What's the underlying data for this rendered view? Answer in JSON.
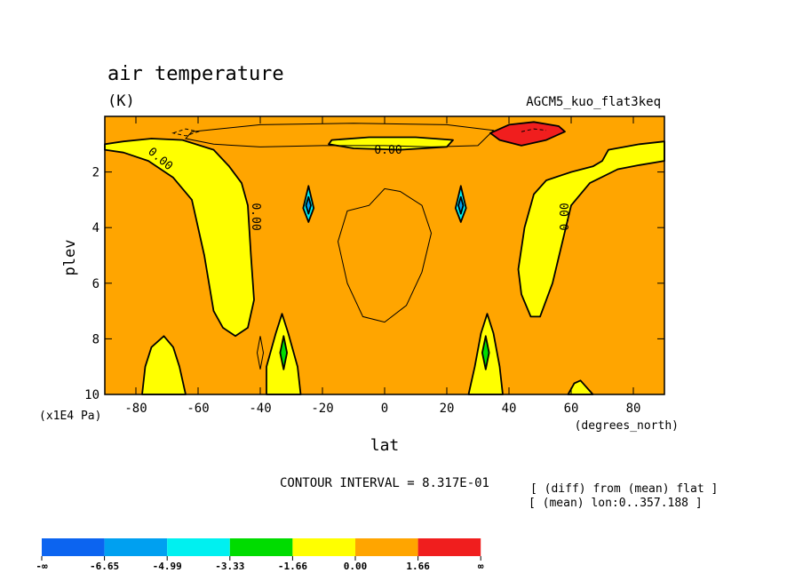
{
  "chart_data": {
    "type": "contour",
    "title": "air temperature",
    "units": "(K)",
    "experiment": "AGCM5_kuo_flat3keq",
    "xlabel": "lat",
    "xunits": "(degrees_north)",
    "ylabel": "plev",
    "yunits": "(x1E4 Pa)",
    "xlim": [
      -90,
      90
    ],
    "ylim": [
      0,
      10
    ],
    "x_ticks": [
      -80,
      -60,
      -40,
      -20,
      0,
      20,
      40,
      60,
      80
    ],
    "y_ticks": [
      2,
      4,
      6,
      8,
      10
    ],
    "x_tick_labels": [
      "-80",
      "-60",
      "-40",
      "-20",
      "0",
      "20",
      "40",
      "60",
      "80"
    ],
    "y_tick_labels": [
      "2",
      "4",
      "6",
      "8",
      "10"
    ],
    "contour_interval": "CONTOUR INTERVAL = 8.317E-01",
    "contour_label": "0.00",
    "notes": [
      "[ (diff) from (mean) flat ]",
      "[ (mean) lon:0..357.188 ]"
    ],
    "levels": [
      "-∞",
      "-6.65",
      "-4.99",
      "-3.33",
      "-1.66",
      "0.00",
      "1.66",
      "∞"
    ],
    "colors": [
      "#0c64f0",
      "#00a0f0",
      "#00f0f0",
      "#00dc00",
      "#ffff00",
      "#ffa500",
      "#f01e1e"
    ],
    "regions": [
      {
        "name": "yellow-left-band",
        "fill": "#ffff00",
        "pts": [
          [
            -90,
            1.0
          ],
          [
            -84,
            0.9
          ],
          [
            -75,
            0.8
          ],
          [
            -65,
            0.85
          ],
          [
            -55,
            1.2
          ],
          [
            -50,
            1.8
          ],
          [
            -46,
            2.4
          ],
          [
            -44,
            3.2
          ],
          [
            -43,
            5.0
          ],
          [
            -42,
            6.6
          ],
          [
            -44,
            7.6
          ],
          [
            -48,
            7.9
          ],
          [
            -52,
            7.6
          ],
          [
            -55,
            7.0
          ],
          [
            -58,
            5.0
          ],
          [
            -62,
            3.0
          ],
          [
            -68,
            2.2
          ],
          [
            -76,
            1.6
          ],
          [
            -84,
            1.3
          ],
          [
            -90,
            1.2
          ]
        ]
      },
      {
        "name": "yellow-top-center",
        "fill": "#ffff00",
        "pts": [
          [
            -17,
            0.85
          ],
          [
            -5,
            0.75
          ],
          [
            10,
            0.75
          ],
          [
            22,
            0.85
          ],
          [
            20,
            1.1
          ],
          [
            5,
            1.2
          ],
          [
            -10,
            1.15
          ],
          [
            -18,
            1.0
          ]
        ]
      },
      {
        "name": "yellow-right-band",
        "fill": "#ffff00",
        "pts": [
          [
            72,
            1.2
          ],
          [
            82,
            1.0
          ],
          [
            90,
            0.9
          ],
          [
            90,
            1.6
          ],
          [
            82,
            1.75
          ],
          [
            75,
            1.9
          ],
          [
            66,
            2.4
          ],
          [
            60,
            3.2
          ],
          [
            57,
            4.6
          ],
          [
            54,
            6.0
          ],
          [
            50,
            7.2
          ],
          [
            47,
            7.2
          ],
          [
            44,
            6.4
          ],
          [
            43,
            5.5
          ],
          [
            45,
            4.0
          ],
          [
            48,
            2.8
          ],
          [
            52,
            2.3
          ],
          [
            60,
            2.0
          ],
          [
            67,
            1.8
          ],
          [
            70,
            1.6
          ]
        ]
      },
      {
        "name": "yellow-bottom-left",
        "fill": "#ffff00",
        "pts": [
          [
            -78,
            10
          ],
          [
            -77,
            9.0
          ],
          [
            -75,
            8.3
          ],
          [
            -71,
            7.9
          ],
          [
            -68,
            8.3
          ],
          [
            -66,
            9.0
          ],
          [
            -64,
            10
          ]
        ]
      },
      {
        "name": "yellow-bottom-mid-left",
        "fill": "#ffff00",
        "pts": [
          [
            -38,
            10
          ],
          [
            -38,
            9.0
          ],
          [
            -35,
            7.8
          ],
          [
            -33,
            7.1
          ],
          [
            -31,
            7.8
          ],
          [
            -28,
            9.0
          ],
          [
            -27,
            10
          ]
        ]
      },
      {
        "name": "yellow-bottom-mid-right",
        "fill": "#ffff00",
        "pts": [
          [
            27,
            10
          ],
          [
            29,
            9.0
          ],
          [
            31,
            7.8
          ],
          [
            33,
            7.1
          ],
          [
            35,
            7.8
          ],
          [
            37,
            9.0
          ],
          [
            38,
            10
          ]
        ]
      },
      {
        "name": "yellow-bottom-right",
        "fill": "#ffff00",
        "pts": [
          [
            59,
            10
          ],
          [
            61,
            9.6
          ],
          [
            63,
            9.5
          ],
          [
            67,
            10
          ]
        ]
      },
      {
        "name": "red-top-right",
        "fill": "#f01e1e",
        "pts": [
          [
            34,
            0.6
          ],
          [
            40,
            0.3
          ],
          [
            48,
            0.2
          ],
          [
            56,
            0.35
          ],
          [
            58,
            0.55
          ],
          [
            52,
            0.85
          ],
          [
            44,
            1.05
          ],
          [
            37,
            0.85
          ]
        ]
      },
      {
        "name": "cyan-left-diamond",
        "fill": "#00f0f0",
        "pts": [
          [
            -24.5,
            2.5
          ],
          [
            -22.8,
            3.3
          ],
          [
            -24.5,
            3.8
          ],
          [
            -26.2,
            3.3
          ]
        ]
      },
      {
        "name": "blue-left-diamond",
        "fill": "#00a0f0",
        "pts": [
          [
            -24.5,
            2.9
          ],
          [
            -23.7,
            3.2
          ],
          [
            -24.5,
            3.5
          ],
          [
            -25.3,
            3.2
          ]
        ]
      },
      {
        "name": "cyan-right-diamond",
        "fill": "#00f0f0",
        "pts": [
          [
            24.5,
            2.5
          ],
          [
            26.2,
            3.3
          ],
          [
            24.5,
            3.8
          ],
          [
            22.8,
            3.3
          ]
        ]
      },
      {
        "name": "blue-right-diamond",
        "fill": "#00a0f0",
        "pts": [
          [
            24.5,
            2.9
          ],
          [
            25.3,
            3.2
          ],
          [
            24.5,
            3.5
          ],
          [
            23.7,
            3.2
          ]
        ]
      },
      {
        "name": "green-left-spot",
        "fill": "#00dc00",
        "pts": [
          [
            -32.5,
            7.9
          ],
          [
            -31.4,
            8.5
          ],
          [
            -32.5,
            9.1
          ],
          [
            -33.6,
            8.5
          ]
        ]
      },
      {
        "name": "green-right-spot",
        "fill": "#00dc00",
        "pts": [
          [
            32.5,
            7.9
          ],
          [
            33.6,
            8.5
          ],
          [
            32.5,
            9.1
          ],
          [
            31.4,
            8.5
          ]
        ]
      }
    ],
    "lines": [
      {
        "name": "contour-center-loop",
        "dash": false,
        "closed": true,
        "pts": [
          [
            -5,
            3.2
          ],
          [
            0,
            2.6
          ],
          [
            5,
            2.7
          ],
          [
            12,
            3.2
          ],
          [
            15,
            4.2
          ],
          [
            12,
            5.6
          ],
          [
            7,
            6.8
          ],
          [
            0,
            7.4
          ],
          [
            -7,
            7.2
          ],
          [
            -12,
            6.0
          ],
          [
            -15,
            4.5
          ],
          [
            -12,
            3.4
          ]
        ]
      },
      {
        "name": "contour-top-center",
        "dash": false,
        "closed": true,
        "pts": [
          [
            -62,
            0.55
          ],
          [
            -40,
            0.3
          ],
          [
            -10,
            0.25
          ],
          [
            20,
            0.3
          ],
          [
            35,
            0.5
          ],
          [
            30,
            1.05
          ],
          [
            15,
            1.1
          ],
          [
            0,
            1.05
          ],
          [
            -20,
            1.05
          ],
          [
            -40,
            1.1
          ],
          [
            -55,
            1.0
          ],
          [
            -64,
            0.8
          ]
        ]
      },
      {
        "name": "contour-top-left-dash",
        "dash": true,
        "closed": true,
        "pts": [
          [
            -68,
            0.6
          ],
          [
            -64,
            0.45
          ],
          [
            -60,
            0.55
          ],
          [
            -64,
            0.7
          ]
        ]
      },
      {
        "name": "contour-left-small-diamond",
        "dash": false,
        "closed": true,
        "pts": [
          [
            -40,
            7.9
          ],
          [
            -39,
            8.5
          ],
          [
            -40,
            9.1
          ],
          [
            -41,
            8.5
          ]
        ]
      },
      {
        "name": "contour-red-inner",
        "dash": true,
        "closed": false,
        "pts": [
          [
            44,
            0.55
          ],
          [
            48,
            0.45
          ],
          [
            52,
            0.5
          ]
        ]
      }
    ]
  }
}
